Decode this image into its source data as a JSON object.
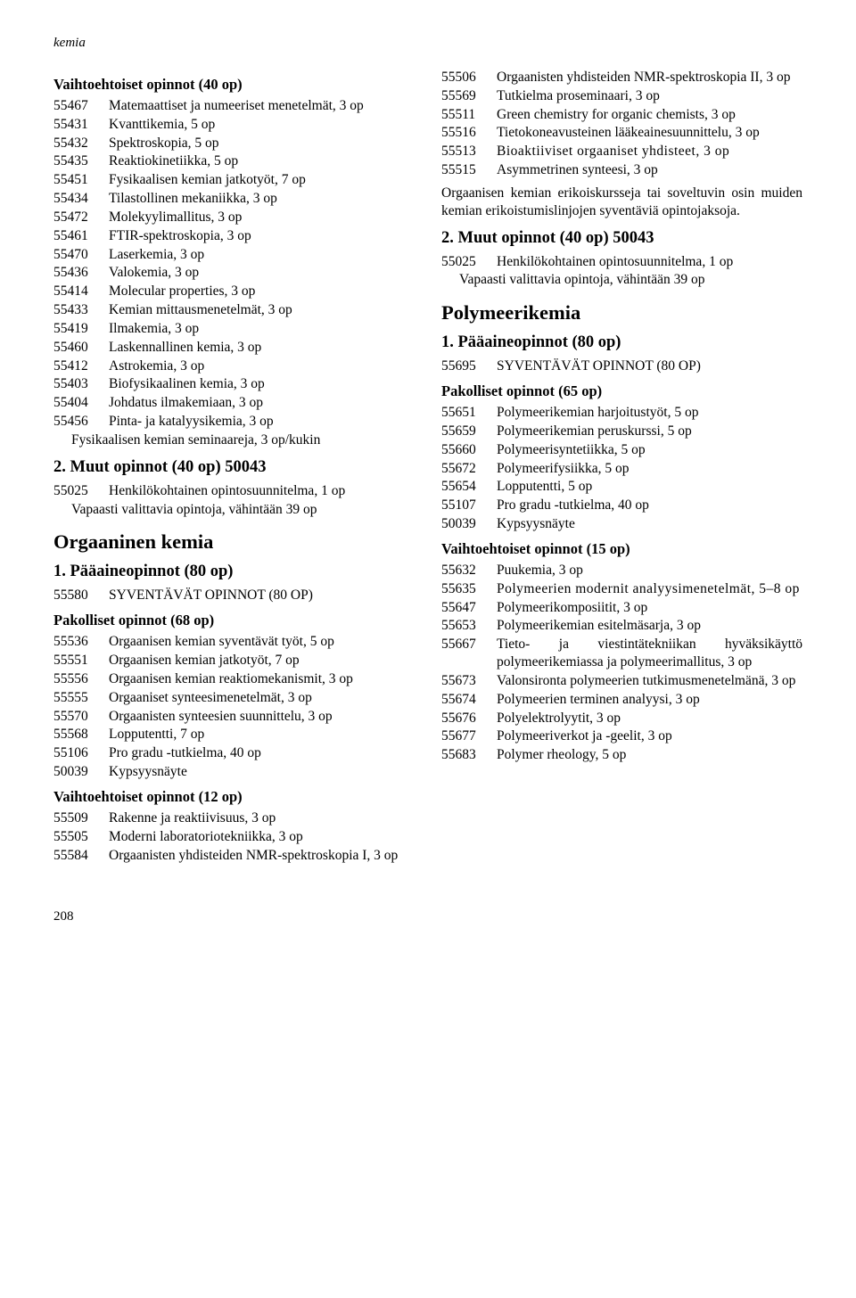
{
  "header": {
    "label": "kemia"
  },
  "page_number": "208",
  "left": {
    "h_vaihto40": "Vaihtoehtoiset opinnot (40 op)",
    "list1": [
      {
        "code": "55467",
        "label": "Matemaattiset ja numeeriset menetelmät, 3 op"
      },
      {
        "code": "55431",
        "label": "Kvanttikemia, 5 op"
      },
      {
        "code": "55432",
        "label": "Spektroskopia, 5 op"
      },
      {
        "code": "55435",
        "label": "Reaktiokinetiikka, 5 op"
      },
      {
        "code": "55451",
        "label": "Fysikaalisen kemian jatkotyöt, 7 op"
      },
      {
        "code": "55434",
        "label": "Tilastollinen mekaniikka, 3 op"
      },
      {
        "code": "55472",
        "label": "Molekyylimallitus, 3 op"
      },
      {
        "code": "55461",
        "label": "FTIR-spektroskopia, 3 op"
      },
      {
        "code": "55470",
        "label": "Laserkemia, 3 op"
      },
      {
        "code": "55436",
        "label": "Valokemia, 3 op"
      },
      {
        "code": "55414",
        "label": "Molecular properties, 3 op"
      },
      {
        "code": "55433",
        "label": "Kemian mittausmenetelmät, 3 op"
      },
      {
        "code": "55419",
        "label": "Ilmakemia, 3 op"
      },
      {
        "code": "55460",
        "label": "Laskennallinen kemia, 3 op"
      },
      {
        "code": "55412",
        "label": "Astrokemia, 3 op"
      },
      {
        "code": "55403",
        "label": "Biofysikaalinen kemia, 3 op"
      },
      {
        "code": "55404",
        "label": "Johdatus ilmakemiaan, 3 op"
      },
      {
        "code": "55456",
        "label": "Pinta- ja katalyysikemia, 3 op"
      }
    ],
    "after_list1": "Fysikaalisen kemian seminaareja, 3 op/kukin",
    "h_muut40": "2. Muut opinnot (40 op) 50043",
    "muut40_entry": {
      "code": "55025",
      "label": "Henkilökohtainen opintosuunnitelma, 1 op"
    },
    "muut40_after": "Vapaasti valittavia opintoja, vähintään 39 op",
    "h_org": "Orgaaninen kemia",
    "h_paa80": "1. Pääaineopinnot (80 op)",
    "syv_entry": {
      "code": "55580",
      "label": "SYVENTÄVÄT OPINNOT (80 OP)"
    },
    "h_pak68": "Pakolliset opinnot (68 op)",
    "list_pak68": [
      {
        "code": "55536",
        "label": "Orgaanisen kemian syventävät työt, 5 op"
      },
      {
        "code": "55551",
        "label": "Orgaanisen kemian jatkotyöt, 7 op"
      },
      {
        "code": "55556",
        "label": "Orgaanisen kemian reaktiomekanismit, 3 op"
      },
      {
        "code": "55555",
        "label": "Orgaaniset synteesimenetelmät, 3 op"
      },
      {
        "code": "55570",
        "label": "Orgaanisten synteesien suunnittelu, 3 op"
      },
      {
        "code": "55568",
        "label": "Lopputentti, 7 op"
      },
      {
        "code": "55106",
        "label": "Pro gradu -tutkielma, 40 op"
      },
      {
        "code": "50039",
        "label": "Kypsyysnäyte"
      }
    ],
    "h_vaihto12": "Vaihtoehtoiset opinnot (12 op)",
    "list_vaihto12": [
      {
        "code": "55509",
        "label": "Rakenne ja reaktiivisuus, 3 op"
      },
      {
        "code": "55505",
        "label": "Moderni laboratoriotekniikka, 3 op"
      },
      {
        "code": "55584",
        "label": "Orgaanisten yhdisteiden NMR-spektroskopia I, 3 op"
      }
    ]
  },
  "right": {
    "list_top": [
      {
        "code": "55506",
        "label": "Orgaanisten yhdisteiden NMR-spektroskopia II, 3 op"
      },
      {
        "code": "55569",
        "label": "Tutkielma proseminaari, 3 op"
      },
      {
        "code": "55511",
        "label": "Green chemistry for organic chemists, 3 op"
      },
      {
        "code": "55516",
        "label": "Tietokoneavusteinen lääkeainesuunnittelu, 3 op"
      },
      {
        "code": "55513",
        "label": "Bioaktiiviset orgaaniset yhdisteet, 3 op",
        "wide": true
      },
      {
        "code": "55515",
        "label": "Asymmetrinen synteesi, 3 op"
      }
    ],
    "para1": "Orgaanisen kemian erikoiskursseja tai soveltuvin osin muiden kemian erikoistumislinjojen syventäviä opintojaksoja.",
    "h_muut40b": "2. Muut opinnot (40 op) 50043",
    "muut40b_entry": {
      "code": "55025",
      "label": "Henkilökohtainen opintosuunnitelma, 1 op"
    },
    "muut40b_after": "Vapaasti valittavia opintoja, vähintään 39 op",
    "h_poly": "Polymeerikemia",
    "h_paa80b": "1. Pääaineopinnot (80 op)",
    "syv_entry_b": {
      "code": "55695",
      "label": "SYVENTÄVÄT OPINNOT (80 OP)"
    },
    "h_pak65": "Pakolliset opinnot (65 op)",
    "list_pak65": [
      {
        "code": "55651",
        "label": "Polymeerikemian harjoitustyöt, 5 op"
      },
      {
        "code": "55659",
        "label": "Polymeerikemian peruskurssi, 5 op"
      },
      {
        "code": "55660",
        "label": "Polymeerisyntetiikka, 5 op"
      },
      {
        "code": "55672",
        "label": "Polymeerifysiikka, 5 op"
      },
      {
        "code": "55654",
        "label": "Lopputentti, 5 op"
      },
      {
        "code": "55107",
        "label": "Pro gradu -tutkielma, 40 op"
      },
      {
        "code": "50039",
        "label": "Kypsyysnäyte"
      }
    ],
    "h_vaihto15": "Vaihtoehtoiset opinnot (15 op)",
    "list_vaihto15": [
      {
        "code": "55632",
        "label": "Puukemia, 3 op"
      },
      {
        "code": "55635",
        "label": "Polymeerien modernit analyysimenetelmät, 5–8 op",
        "wide": true
      },
      {
        "code": "55647",
        "label": "Polymeerikomposiitit, 3 op"
      },
      {
        "code": "55653",
        "label": "Polymeerikemian esitelmäsarja, 3 op"
      },
      {
        "code": "55667",
        "label": "Tieto- ja viestintätekniikan hyväksikäyttö polymeerikemiassa ja polymeerimallitus, 3 op"
      },
      {
        "code": "55673",
        "label": "Valonsironta polymeerien tutkimusmenetelmänä, 3 op"
      },
      {
        "code": "55674",
        "label": "Polymeerien terminen analyysi, 3 op"
      },
      {
        "code": "55676",
        "label": "Polyelektrolyytit, 3 op"
      },
      {
        "code": "55677",
        "label": "Polymeeriverkot ja -geelit, 3 op"
      },
      {
        "code": "55683",
        "label": "Polymer rheology, 5 op"
      }
    ]
  }
}
